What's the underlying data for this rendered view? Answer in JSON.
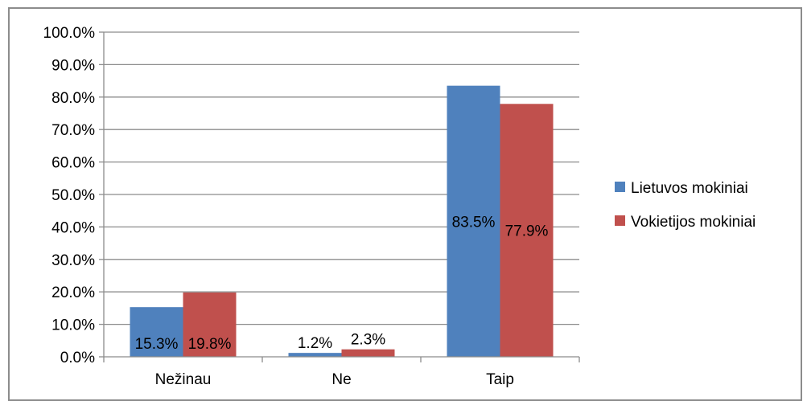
{
  "chart_data": {
    "type": "bar",
    "categories": [
      "Nežinau",
      "Ne",
      "Taip"
    ],
    "series": [
      {
        "name": "Lietuvos mokiniai",
        "color": "#4f81bd",
        "values": [
          15.3,
          1.2,
          83.5
        ],
        "labels": [
          "15.3%",
          "1.2%",
          "83.5%"
        ]
      },
      {
        "name": "Vokietijos mokiniai",
        "color": "#c0504d",
        "values": [
          19.8,
          2.3,
          77.9
        ],
        "labels": [
          "19.8%",
          "2.3%",
          "77.9%"
        ]
      }
    ],
    "ylim": [
      0,
      100
    ],
    "yticks": [
      0,
      10,
      20,
      30,
      40,
      50,
      60,
      70,
      80,
      90,
      100
    ],
    "ytick_labels": [
      "0.0%",
      "10.0%",
      "20.0%",
      "30.0%",
      "40.0%",
      "50.0%",
      "60.0%",
      "70.0%",
      "80.0%",
      "90.0%",
      "100.0%"
    ],
    "grid": true,
    "legend": "right",
    "title": "",
    "xlabel": "",
    "ylabel": ""
  }
}
